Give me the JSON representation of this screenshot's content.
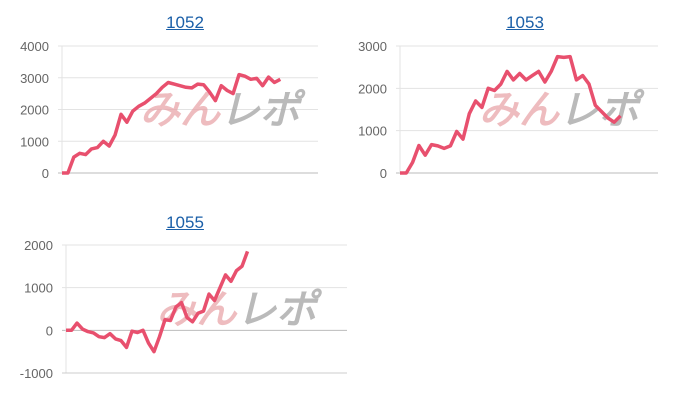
{
  "watermark": {
    "part1": "みん",
    "part2": "レポ"
  },
  "line_color": "#e8506e",
  "chart_data": [
    {
      "type": "line",
      "title": "1052",
      "ylim": [
        0,
        4000
      ],
      "yticks": [
        "4000",
        "3000",
        "2000",
        "1000",
        "0"
      ],
      "ytick_values": [
        4000,
        3000,
        2000,
        1000,
        0
      ],
      "grid": true,
      "values": [
        0,
        0,
        500,
        620,
        580,
        760,
        800,
        1000,
        850,
        1200,
        1850,
        1600,
        1950,
        2100,
        2200,
        2350,
        2500,
        2700,
        2850,
        2800,
        2750,
        2700,
        2680,
        2800,
        2780,
        2550,
        2280,
        2750,
        2600,
        2500,
        3100,
        3050,
        2950,
        2980,
        2750,
        3020,
        2850,
        2950
      ]
    },
    {
      "type": "line",
      "title": "1053",
      "ylim": [
        0,
        3000
      ],
      "yticks": [
        "3000",
        "2000",
        "1000",
        "0"
      ],
      "ytick_values": [
        3000,
        2000,
        1000,
        0
      ],
      "grid": true,
      "values": [
        0,
        0,
        250,
        650,
        420,
        670,
        640,
        580,
        640,
        980,
        800,
        1400,
        1700,
        1550,
        2000,
        1950,
        2100,
        2400,
        2200,
        2350,
        2200,
        2300,
        2400,
        2150,
        2400,
        2750,
        2730,
        2750,
        2200,
        2300,
        2100,
        1600,
        1450,
        1300,
        1200,
        1350
      ]
    },
    {
      "type": "line",
      "title": "1055",
      "ylim": [
        -1000,
        2000
      ],
      "yticks": [
        "2000",
        "1000",
        "0",
        "-1000"
      ],
      "ytick_values": [
        2000,
        1000,
        0,
        -1000
      ],
      "grid": true,
      "values": [
        0,
        0,
        170,
        30,
        -30,
        -60,
        -150,
        -170,
        -80,
        -200,
        -240,
        -400,
        -20,
        -50,
        0,
        -300,
        -500,
        -150,
        250,
        230,
        550,
        650,
        300,
        200,
        400,
        450,
        850,
        700,
        1000,
        1300,
        1150,
        1400,
        1500,
        1850
      ]
    }
  ]
}
